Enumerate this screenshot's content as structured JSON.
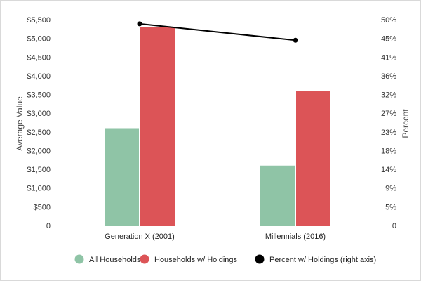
{
  "chart_data": {
    "type": "bar",
    "categories": [
      "Generation X (2001)",
      "Millennials (2016)"
    ],
    "series": [
      {
        "name": "All Households",
        "axis": "left",
        "type": "bar",
        "color": "#8fc4a6",
        "values": [
          2600,
          1600
        ]
      },
      {
        "name": "Households w/ Holdings",
        "axis": "left",
        "type": "bar",
        "color": "#dc5457",
        "values": [
          5300,
          3600
        ]
      },
      {
        "name": "Percent w/ Holdings (right axis)",
        "axis": "right",
        "type": "line",
        "color": "#000000",
        "values": [
          49,
          45
        ]
      }
    ],
    "ylabel": "Average Value",
    "y2label": "Percent",
    "ylim": [
      0,
      5500
    ],
    "y2lim": [
      0,
      50
    ],
    "yticks": [
      0,
      500,
      1000,
      1500,
      2000,
      2500,
      3000,
      3500,
      4000,
      4500,
      5000,
      5500
    ],
    "ytick_labels": [
      "0",
      "$500",
      "$1,000",
      "$1,500",
      "$2,000",
      "$2,500",
      "$3,000",
      "$3,500",
      "$4,000",
      "$4,500",
      "$5,000",
      "$5,500"
    ],
    "y2tick_labels": [
      "0",
      "5%",
      "9%",
      "14%",
      "18%",
      "23%",
      "27%",
      "32%",
      "36%",
      "41%",
      "45%",
      "50%"
    ],
    "legend_position": "bottom",
    "grid": false
  }
}
